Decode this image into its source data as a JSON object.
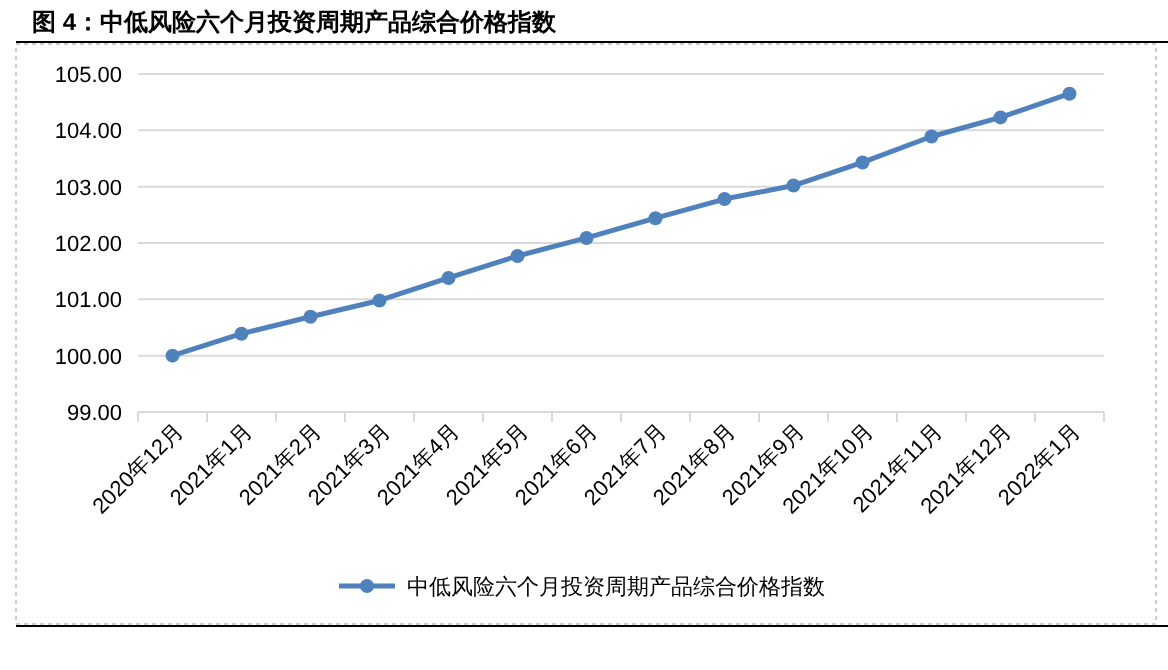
{
  "chart_data": {
    "type": "line",
    "title": "图 4：中低风险六个月投资周期产品综合价格指数",
    "categories": [
      "2020年12月",
      "2021年1月",
      "2021年2月",
      "2021年3月",
      "2021年4月",
      "2021年5月",
      "2021年6月",
      "2021年7月",
      "2021年8月",
      "2021年9月",
      "2021年10月",
      "2021年11月",
      "2021年12月",
      "2022年1月"
    ],
    "series": [
      {
        "name": "中低风险六个月投资周期产品综合价格指数",
        "color": "#4f81bd",
        "values": [
          100.0,
          100.39,
          100.69,
          100.98,
          101.38,
          101.77,
          102.09,
          102.44,
          102.78,
          103.02,
          103.43,
          103.89,
          104.23,
          104.65
        ]
      }
    ],
    "ylim": [
      99,
      105
    ],
    "yticks": [
      {
        "value": 99,
        "label": "99.00"
      },
      {
        "value": 100,
        "label": "100.00"
      },
      {
        "value": 101,
        "label": "101.00"
      },
      {
        "value": 102,
        "label": "102.00"
      },
      {
        "value": 103,
        "label": "103.00"
      },
      {
        "value": 104,
        "label": "104.00"
      },
      {
        "value": 105,
        "label": "105.00"
      }
    ],
    "grid": "y",
    "legend": "bottom",
    "marker": "circle",
    "line_style": "solid"
  }
}
